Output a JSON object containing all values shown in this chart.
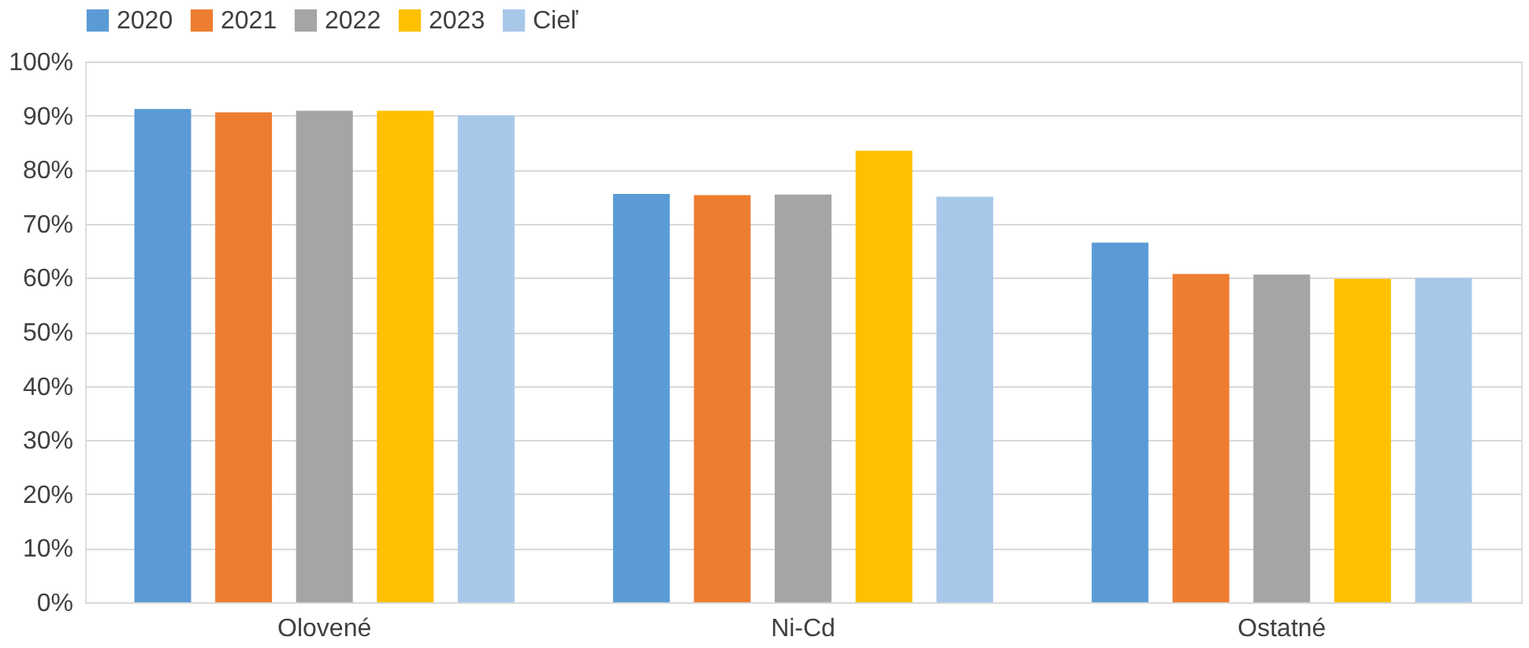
{
  "chart_data": {
    "type": "bar",
    "categories": [
      "Olovené",
      "Ni-Cd",
      "Ostatné"
    ],
    "series": [
      {
        "name": "2020",
        "color": "#5b9bd5",
        "values": [
          91.2,
          75.5,
          66.5
        ]
      },
      {
        "name": "2021",
        "color": "#ed7d31",
        "values": [
          90.6,
          75.3,
          60.7
        ]
      },
      {
        "name": "2022",
        "color": "#a5a5a5",
        "values": [
          90.9,
          75.4,
          60.6
        ]
      },
      {
        "name": "2023",
        "color": "#ffc000",
        "values": [
          90.9,
          83.5,
          59.8
        ]
      },
      {
        "name": "Cieľ",
        "color": "#a8c8ea",
        "values": [
          90,
          75,
          60
        ]
      }
    ],
    "ylim": [
      0,
      100
    ],
    "yticks": [
      {
        "value": 0,
        "label": "0%"
      },
      {
        "value": 10,
        "label": "10%"
      },
      {
        "value": 20,
        "label": "20%"
      },
      {
        "value": 30,
        "label": "30%"
      },
      {
        "value": 40,
        "label": "40%"
      },
      {
        "value": 50,
        "label": "50%"
      },
      {
        "value": 60,
        "label": "60%"
      },
      {
        "value": 70,
        "label": "70%"
      },
      {
        "value": 80,
        "label": "80%"
      },
      {
        "value": 90,
        "label": "90%"
      },
      {
        "value": 100,
        "label": "100%"
      }
    ],
    "grid": "y",
    "legend": "top"
  }
}
